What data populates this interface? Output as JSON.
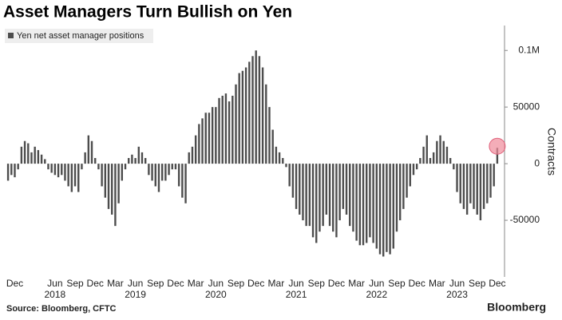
{
  "chart_data": {
    "type": "bar",
    "title": "Asset Managers Turn Bullish on Yen",
    "y_label": "Contracts",
    "source": "Source: Bloomberg, CFTC",
    "brand": "Bloomberg",
    "series": [
      {
        "name": "Yen net asset manager positions",
        "color": "#4d4d4d",
        "values": [
          -15000,
          -10000,
          -12000,
          -5000,
          15000,
          20000,
          18000,
          10000,
          15000,
          12000,
          8000,
          4000,
          -5000,
          -8000,
          -10000,
          -12000,
          -10000,
          -15000,
          -20000,
          -25000,
          -20000,
          -25000,
          -5000,
          10000,
          25000,
          20000,
          5000,
          -5000,
          -20000,
          -30000,
          -40000,
          -45000,
          -55000,
          -35000,
          -15000,
          -5000,
          5000,
          8000,
          5000,
          15000,
          10000,
          5000,
          -10000,
          -15000,
          -20000,
          -25000,
          -15000,
          -15000,
          -10000,
          -5000,
          -5000,
          -20000,
          -30000,
          -35000,
          10000,
          15000,
          25000,
          35000,
          40000,
          45000,
          45000,
          50000,
          50000,
          58000,
          60000,
          62000,
          55000,
          60000,
          70000,
          80000,
          82000,
          85000,
          90000,
          95000,
          100000,
          95000,
          85000,
          70000,
          50000,
          30000,
          15000,
          10000,
          5000,
          -3000,
          -20000,
          -30000,
          -40000,
          -45000,
          -50000,
          -55000,
          -55000,
          -65000,
          -70000,
          -60000,
          -55000,
          -45000,
          -55000,
          -60000,
          -65000,
          -50000,
          -40000,
          -45000,
          -55000,
          -60000,
          -68000,
          -72000,
          -72000,
          -70000,
          -65000,
          -70000,
          -75000,
          -80000,
          -82000,
          -78000,
          -80000,
          -75000,
          -60000,
          -50000,
          -40000,
          -30000,
          -20000,
          -10000,
          -5000,
          5000,
          15000,
          25000,
          5000,
          10000,
          20000,
          25000,
          20000,
          15000,
          5000,
          -5000,
          -25000,
          -35000,
          -40000,
          -45000,
          -35000,
          -40000,
          -45000,
          -50000,
          -40000,
          -35000,
          -30000,
          -20000,
          14000
        ]
      }
    ],
    "categories": [
      null,
      null,
      "Dec",
      null,
      null,
      null,
      null,
      null,
      null,
      null,
      null,
      null,
      null,
      null,
      "Jun",
      null,
      null,
      null,
      null,
      null,
      "Sep",
      null,
      null,
      null,
      null,
      null,
      "Dec",
      null,
      null,
      null,
      null,
      null,
      "Mar",
      null,
      null,
      null,
      null,
      null,
      "Jun",
      null,
      null,
      null,
      null,
      null,
      "Sep",
      null,
      null,
      null,
      null,
      null,
      "Dec",
      null,
      null,
      null,
      null,
      null,
      "Mar",
      null,
      null,
      null,
      null,
      null,
      "Jun",
      null,
      null,
      null,
      null,
      null,
      "Sep",
      null,
      null,
      null,
      null,
      null,
      "Dec",
      null,
      null,
      null,
      null,
      null,
      "Mar",
      null,
      null,
      null,
      null,
      null,
      "Jun",
      null,
      null,
      null,
      null,
      null,
      "Sep",
      null,
      null,
      null,
      null,
      null,
      "Dec",
      null,
      null,
      null,
      null,
      null,
      "Mar",
      null,
      null,
      null,
      null,
      null,
      "Jun",
      null,
      null,
      null,
      null,
      null,
      "Sep",
      null,
      null,
      null,
      null,
      null,
      "Dec",
      null,
      null,
      null,
      null,
      null,
      "Mar",
      null,
      null,
      null,
      null,
      null,
      "Jun",
      null,
      null,
      null,
      null,
      null,
      "Sep",
      null,
      null,
      null,
      null,
      null,
      "Dec"
    ],
    "year_labels": [
      "2018",
      "2019",
      "2020",
      "2021",
      "2022",
      "2023"
    ],
    "ylim": [
      -100000,
      122000
    ],
    "yticks": [
      -50000,
      0,
      50000,
      {
        "value": 100000,
        "label": "0.1M"
      }
    ],
    "grid": false
  }
}
